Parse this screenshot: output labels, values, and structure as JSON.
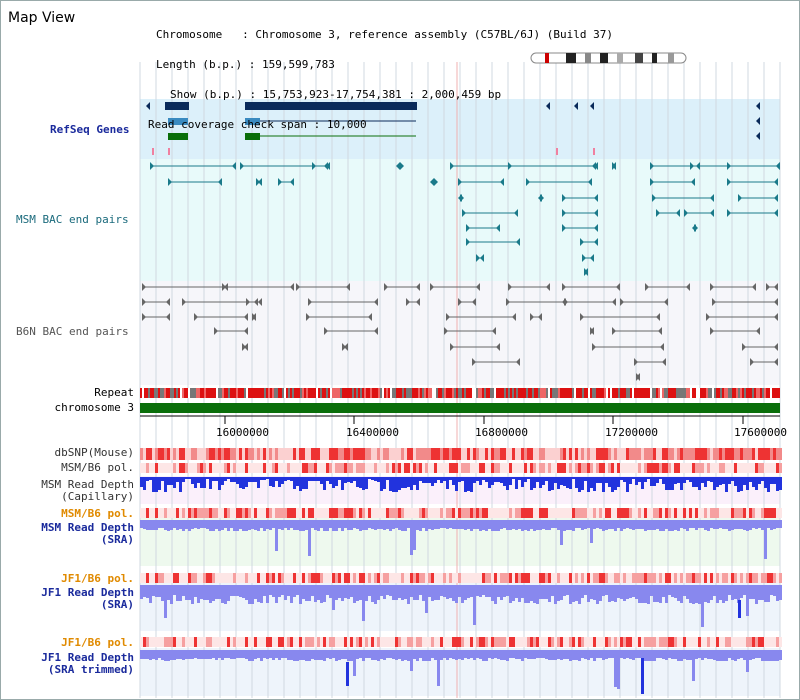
{
  "page": {
    "title": "Map View"
  },
  "info": {
    "chromosome_label": "Chromosome",
    "chromosome_value": "Chromosome 3, reference assembly (C57BL/6J) (Build 37)",
    "length_label": "Length (b.p.)",
    "length_value": "159,599,783",
    "show_label": "Show (b.p.)",
    "show_value": "15,753,923-17,754,381 : 2,000,459 bp",
    "coverage_label": "Read coverage check span",
    "coverage_value": "10,000"
  },
  "tracks": {
    "refseq_genes": "RefSeq Genes",
    "msm_bac": "MSM BAC end pairs",
    "b6n_bac": "B6N BAC end pairs",
    "repeat": "Repeat",
    "chromosome": "chromosome 3",
    "dbsnp": "dbSNP(Mouse)",
    "msm_b6_pol_1": "MSM/B6 pol.",
    "msm_read_depth_cap_1": "MSM Read Depth",
    "msm_read_depth_cap_2": "(Capillary)",
    "msm_b6_pol_2": "MSM/B6 pol.",
    "msm_read_depth_sra_1": "MSM Read Depth",
    "msm_read_depth_sra_2": "(SRA)",
    "jf1_b6_pol_1": "JF1/B6 pol.",
    "jf1_read_depth_sra_1": "JF1 Read Depth",
    "jf1_read_depth_sra_2": "(SRA)",
    "jf1_b6_pol_2": "JF1/B6 pol.",
    "jf1_read_depth_trim_1": "JF1 Read Depth",
    "jf1_read_depth_trim_2": "(SRA trimmed)"
  },
  "axis": {
    "ticks": [
      "16000000",
      "16400000",
      "16800000",
      "17200000",
      "17600000"
    ]
  },
  "colors": {
    "refseq_bg": "#dcf0fa",
    "msm_bg": "#e8fafa",
    "b6n_bg": "#f6f6fa",
    "chrom_bar": "#0a6e0a",
    "gene_navy": "#0a2a5a",
    "gene_blue": "#3a8ac0",
    "gene_green": "#0a6e0a",
    "bac_teal": "#1a7a8a",
    "bac_gray": "#666666",
    "depth_blue": "#2233dd",
    "depth_light": "#8888ee"
  }
}
